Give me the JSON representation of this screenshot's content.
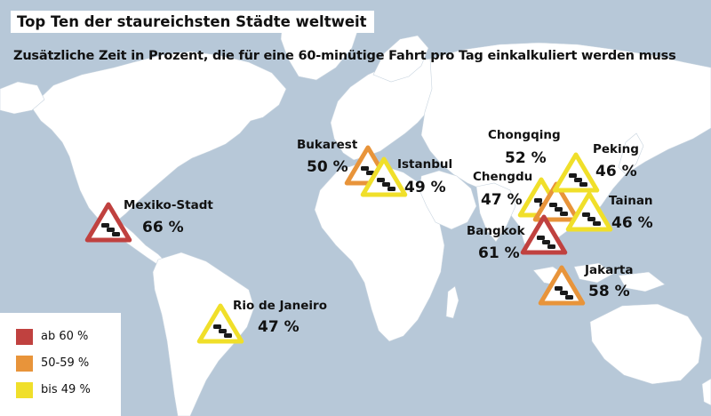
{
  "title": "Top Ten der staureichsten Städte weltweit",
  "subtitle": "Zusätzliche Zeit in Prozent, die für eine 60-minütige Fahrt pro Tag einkalkuliert werden muss",
  "colors": {
    "ocean": "#b7c8d8",
    "land": "#ffffff",
    "red": "#c0413f",
    "orange": "#e8943a",
    "yellow": "#f0df2a"
  },
  "cities": [
    {
      "id": "mexiko-stadt",
      "name": "Mexiko-Stadt",
      "value": "66 %",
      "category": "red",
      "icon": "traffic-jam-warning-icon"
    },
    {
      "id": "rio",
      "name": "Rio de Janeiro",
      "value": "47 %",
      "category": "yellow",
      "icon": "traffic-jam-warning-icon"
    },
    {
      "id": "bukarest",
      "name": "Bukarest",
      "value": "50 %",
      "category": "orange",
      "icon": "traffic-jam-warning-icon"
    },
    {
      "id": "istanbul",
      "name": "Istanbul",
      "value": "49 %",
      "category": "yellow",
      "icon": "traffic-jam-warning-icon"
    },
    {
      "id": "chongqing",
      "name": "Chongqing",
      "value": "52 %",
      "category": "orange",
      "icon": "traffic-jam-warning-icon"
    },
    {
      "id": "chengdu",
      "name": "Chengdu",
      "value": "47 %",
      "category": "yellow",
      "icon": "traffic-jam-warning-icon"
    },
    {
      "id": "peking",
      "name": "Peking",
      "value": "46 %",
      "category": "yellow",
      "icon": "traffic-jam-warning-icon"
    },
    {
      "id": "tainan",
      "name": "Tainan",
      "value": "46 %",
      "category": "yellow",
      "icon": "traffic-jam-warning-icon"
    },
    {
      "id": "bangkok",
      "name": "Bangkok",
      "value": "61 %",
      "category": "red",
      "icon": "traffic-jam-warning-icon"
    },
    {
      "id": "jakarta",
      "name": "Jakarta",
      "value": "58 %",
      "category": "orange",
      "icon": "traffic-jam-warning-icon"
    }
  ],
  "legend": [
    {
      "label": "ab 60 %",
      "category": "red"
    },
    {
      "label": "50-59 %",
      "category": "orange"
    },
    {
      "label": "bis 49 %",
      "category": "yellow"
    }
  ]
}
